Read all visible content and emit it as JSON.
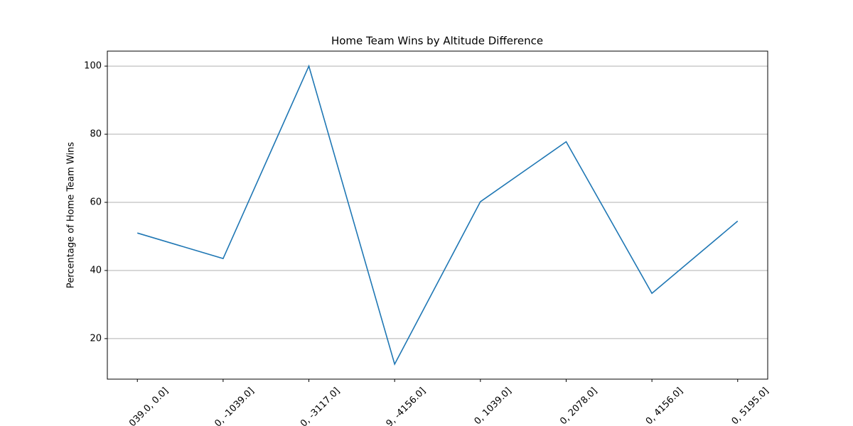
{
  "chart_data": {
    "type": "line",
    "title": "Home Team Wins by Altitude Difference",
    "y_label": "Percentage of Home Team Wins",
    "categories": [
      "039.0, 0.0]",
      "0, -1039.0]",
      "0, -3117.0]",
      "9, -4156.0]",
      "0, 1039.0]",
      "0, 2078.0]",
      "0, 4156.0]",
      "0, 5195.0]"
    ],
    "series": [
      {
        "name": "Home Team Wins",
        "color": "#1f77b4",
        "values": [
          51.0,
          43.5,
          100,
          12.5,
          60.2,
          77.8,
          33.3,
          54.5
        ]
      }
    ],
    "ylim": [
      8.1,
      104.4
    ],
    "yticks": [
      20,
      40,
      60,
      80,
      100
    ],
    "grid": true
  }
}
